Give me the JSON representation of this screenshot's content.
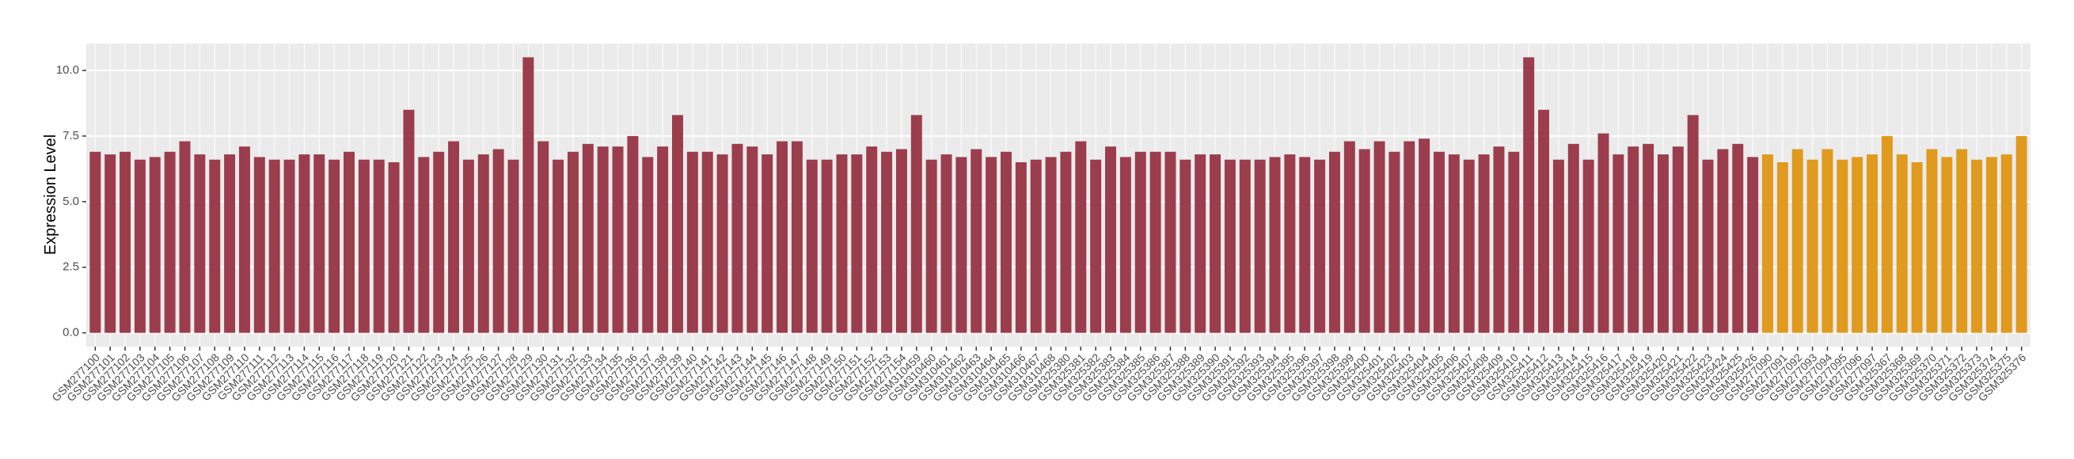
{
  "chart_data": {
    "type": "bar",
    "y_label": "Expression Level",
    "categories": [
      "GSM277100",
      "GSM277101",
      "GSM277102",
      "GSM277103",
      "GSM277104",
      "GSM277105",
      "GSM277106",
      "GSM277107",
      "GSM277108",
      "GSM277109",
      "GSM277110",
      "GSM277111",
      "GSM277112",
      "GSM277113",
      "GSM277114",
      "GSM277115",
      "GSM277116",
      "GSM277117",
      "GSM277118",
      "GSM277119",
      "GSM277120",
      "GSM277121",
      "GSM277122",
      "GSM277123",
      "GSM277124",
      "GSM277125",
      "GSM277126",
      "GSM277127",
      "GSM277128",
      "GSM277129",
      "GSM277130",
      "GSM277131",
      "GSM277132",
      "GSM277133",
      "GSM277134",
      "GSM277135",
      "GSM277136",
      "GSM277137",
      "GSM277138",
      "GSM277139",
      "GSM277140",
      "GSM277141",
      "GSM277142",
      "GSM277143",
      "GSM277144",
      "GSM277145",
      "GSM277146",
      "GSM277147",
      "GSM277148",
      "GSM277149",
      "GSM277150",
      "GSM277151",
      "GSM277152",
      "GSM277153",
      "GSM277154",
      "GSM310459",
      "GSM310460",
      "GSM310461",
      "GSM310462",
      "GSM310463",
      "GSM310464",
      "GSM310465",
      "GSM310466",
      "GSM310467",
      "GSM310468",
      "GSM325380",
      "GSM325381",
      "GSM325382",
      "GSM325383",
      "GSM325384",
      "GSM325385",
      "GSM325386",
      "GSM325387",
      "GSM325388",
      "GSM325389",
      "GSM325390",
      "GSM325391",
      "GSM325392",
      "GSM325393",
      "GSM325394",
      "GSM325395",
      "GSM325396",
      "GSM325397",
      "GSM325398",
      "GSM325399",
      "GSM325400",
      "GSM325401",
      "GSM325402",
      "GSM325403",
      "GSM325404",
      "GSM325405",
      "GSM325406",
      "GSM325407",
      "GSM325408",
      "GSM325409",
      "GSM325410",
      "GSM325411",
      "GSM325412",
      "GSM325413",
      "GSM325414",
      "GSM325415",
      "GSM325416",
      "GSM325417",
      "GSM325418",
      "GSM325419",
      "GSM325420",
      "GSM325421",
      "GSM325422",
      "GSM325423",
      "GSM325424",
      "GSM325425",
      "GSM325426",
      "GSM277090",
      "GSM277091",
      "GSM277092",
      "GSM277093",
      "GSM277094",
      "GSM277095",
      "GSM277096",
      "GSM277097",
      "GSM325367",
      "GSM325368",
      "GSM325369",
      "GSM325370",
      "GSM325371",
      "GSM325372",
      "GSM325373",
      "GSM325374",
      "GSM325375",
      "GSM325376"
    ],
    "values": [
      6.9,
      6.8,
      6.9,
      6.6,
      6.7,
      6.9,
      7.3,
      6.8,
      6.6,
      6.8,
      7.1,
      6.7,
      6.6,
      6.6,
      6.8,
      6.8,
      6.6,
      6.9,
      6.6,
      6.6,
      6.5,
      8.5,
      6.7,
      6.9,
      7.3,
      6.6,
      6.8,
      7.0,
      6.6,
      10.5,
      7.3,
      6.6,
      6.9,
      7.2,
      7.1,
      7.1,
      7.5,
      6.7,
      7.1,
      8.3,
      6.9,
      6.9,
      6.8,
      7.2,
      7.1,
      6.8,
      7.3,
      7.3,
      6.6,
      6.6,
      6.8,
      6.8,
      7.1,
      6.9,
      7.0,
      8.3,
      6.6,
      6.8,
      6.7,
      7.0,
      6.7,
      6.9,
      6.5,
      6.6,
      6.7,
      6.9,
      7.3,
      6.6,
      7.1,
      6.7,
      6.9,
      6.9,
      6.9,
      6.6,
      6.8,
      6.8,
      6.6,
      6.6,
      6.6,
      6.7,
      6.8,
      6.7,
      6.6,
      6.9,
      7.3,
      7.0,
      7.3,
      6.9,
      7.3,
      7.4,
      6.9,
      6.8,
      6.6,
      6.8,
      7.1,
      6.9,
      10.5,
      8.5,
      6.6,
      7.2,
      6.6,
      7.6,
      6.8,
      7.1,
      7.2,
      6.8,
      7.1,
      8.3,
      6.6,
      7.0,
      7.2,
      6.7,
      6.8,
      6.5,
      7.0,
      6.6,
      7.0,
      6.6,
      6.7,
      6.8,
      7.5,
      6.8,
      6.5,
      7.0,
      6.7,
      7.0,
      6.6,
      6.7,
      6.8,
      7.5
    ],
    "colors": [
      "#9b3d4c",
      "#9b3d4c",
      "#9b3d4c",
      "#9b3d4c",
      "#9b3d4c",
      "#9b3d4c",
      "#9b3d4c",
      "#9b3d4c",
      "#9b3d4c",
      "#9b3d4c",
      "#9b3d4c",
      "#9b3d4c",
      "#9b3d4c",
      "#9b3d4c",
      "#9b3d4c",
      "#9b3d4c",
      "#9b3d4c",
      "#9b3d4c",
      "#9b3d4c",
      "#9b3d4c",
      "#9b3d4c",
      "#9b3d4c",
      "#9b3d4c",
      "#9b3d4c",
      "#9b3d4c",
      "#9b3d4c",
      "#9b3d4c",
      "#9b3d4c",
      "#9b3d4c",
      "#9b3d4c",
      "#9b3d4c",
      "#9b3d4c",
      "#9b3d4c",
      "#9b3d4c",
      "#9b3d4c",
      "#9b3d4c",
      "#9b3d4c",
      "#9b3d4c",
      "#9b3d4c",
      "#9b3d4c",
      "#9b3d4c",
      "#9b3d4c",
      "#9b3d4c",
      "#9b3d4c",
      "#9b3d4c",
      "#9b3d4c",
      "#9b3d4c",
      "#9b3d4c",
      "#9b3d4c",
      "#9b3d4c",
      "#9b3d4c",
      "#9b3d4c",
      "#9b3d4c",
      "#9b3d4c",
      "#9b3d4c",
      "#9b3d4c",
      "#9b3d4c",
      "#9b3d4c",
      "#9b3d4c",
      "#9b3d4c",
      "#9b3d4c",
      "#9b3d4c",
      "#9b3d4c",
      "#9b3d4c",
      "#9b3d4c",
      "#9b3d4c",
      "#9b3d4c",
      "#9b3d4c",
      "#9b3d4c",
      "#9b3d4c",
      "#9b3d4c",
      "#9b3d4c",
      "#9b3d4c",
      "#9b3d4c",
      "#9b3d4c",
      "#9b3d4c",
      "#9b3d4c",
      "#9b3d4c",
      "#9b3d4c",
      "#9b3d4c",
      "#9b3d4c",
      "#9b3d4c",
      "#9b3d4c",
      "#9b3d4c",
      "#9b3d4c",
      "#9b3d4c",
      "#9b3d4c",
      "#9b3d4c",
      "#9b3d4c",
      "#9b3d4c",
      "#9b3d4c",
      "#9b3d4c",
      "#9b3d4c",
      "#9b3d4c",
      "#9b3d4c",
      "#9b3d4c",
      "#9b3d4c",
      "#9b3d4c",
      "#9b3d4c",
      "#9b3d4c",
      "#9b3d4c",
      "#9b3d4c",
      "#9b3d4c",
      "#9b3d4c",
      "#9b3d4c",
      "#9b3d4c",
      "#9b3d4c",
      "#9b3d4c",
      "#9b3d4c",
      "#9b3d4c",
      "#9b3d4c",
      "#9b3d4c",
      "#e09a1e",
      "#e09a1e",
      "#e09a1e",
      "#e09a1e",
      "#e09a1e",
      "#e09a1e",
      "#e09a1e",
      "#e09a1e",
      "#e09a1e",
      "#e09a1e",
      "#e09a1e",
      "#e09a1e",
      "#e09a1e",
      "#e09a1e",
      "#e09a1e",
      "#e09a1e",
      "#e09a1e",
      "#e09a1e"
    ],
    "ylim": [
      -0.525,
      11.025
    ],
    "yticks": [
      {
        "value": 0,
        "label": "0.0"
      },
      {
        "value": 2.5,
        "label": "2.5"
      },
      {
        "value": 5,
        "label": "5.0"
      },
      {
        "value": 7.5,
        "label": "7.5"
      },
      {
        "value": 10,
        "label": "10.0"
      }
    ],
    "grid": true
  }
}
